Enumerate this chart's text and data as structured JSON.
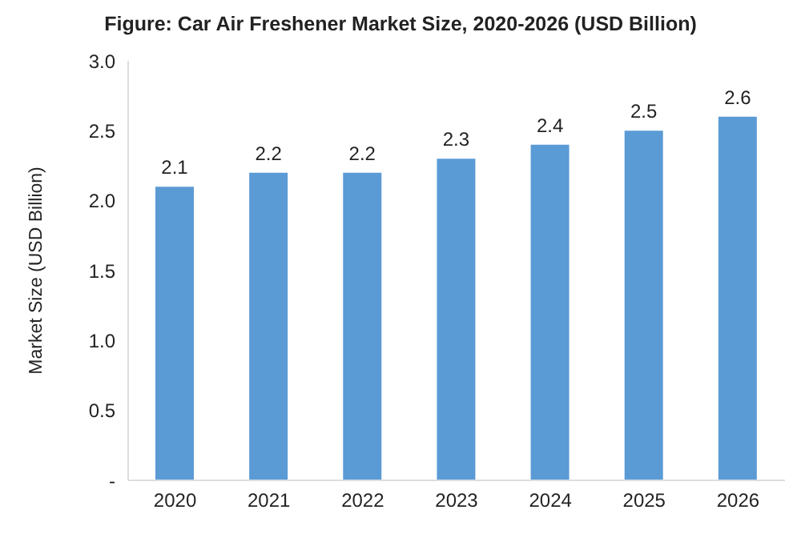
{
  "chart_data": {
    "type": "bar",
    "title": "Figure: Car Air Freshener Market Size, 2020-2026 (USD Billion)",
    "ylabel": "Market Size (USD Billion)",
    "categories": [
      "2020",
      "2021",
      "2022",
      "2023",
      "2024",
      "2025",
      "2026"
    ],
    "values": [
      2.1,
      2.2,
      2.2,
      2.3,
      2.4,
      2.5,
      2.6
    ],
    "color": "#5b9bd5",
    "ylim": [
      0,
      3
    ],
    "yticks": [
      {
        "value": 0,
        "label": "-"
      },
      0.5,
      {
        "value": 1,
        "label": "1.0"
      },
      1.5,
      {
        "value": 2,
        "label": "2.0"
      },
      2.5,
      {
        "value": 3,
        "label": "3.0"
      }
    ],
    "data_labels": true,
    "grid": false,
    "legend": false
  }
}
